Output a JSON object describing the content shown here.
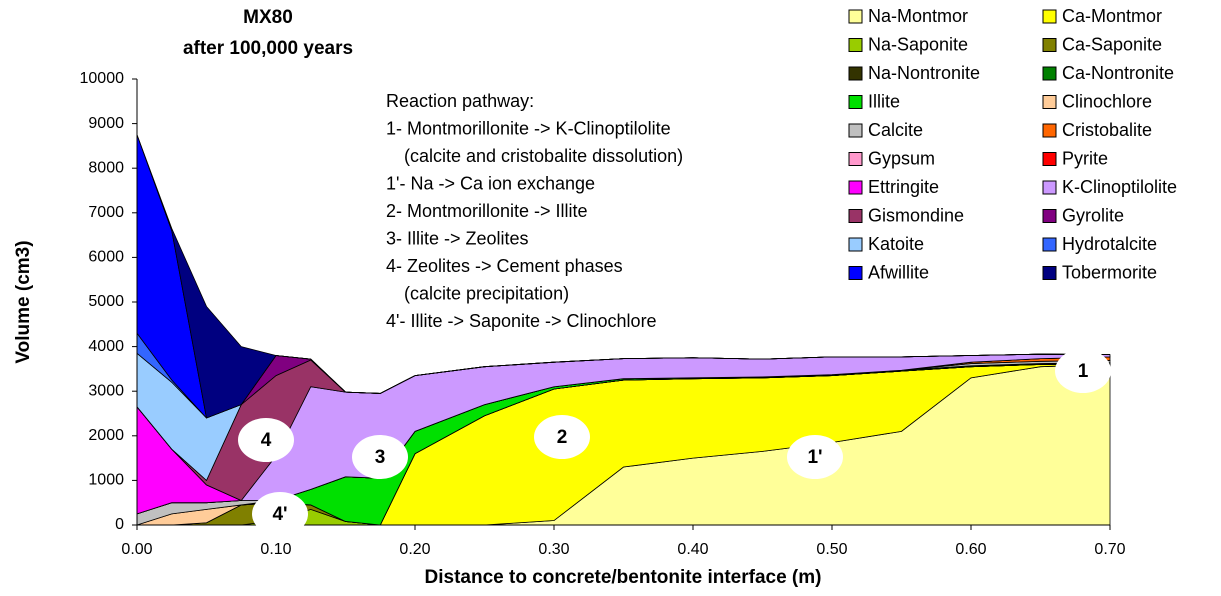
{
  "chart_data": {
    "type": "stacked_area",
    "title": [
      "MX80",
      "after 100,000 years"
    ],
    "x_label": "Distance to concrete/bentonite interface (m)",
    "y_label": "Volume (cm3)",
    "x": [
      0,
      0.025,
      0.05,
      0.075,
      0.1,
      0.125,
      0.15,
      0.175,
      0.2,
      0.25,
      0.3,
      0.35,
      0.4,
      0.45,
      0.5,
      0.55,
      0.6,
      0.65,
      0.7
    ],
    "xlim": [
      0,
      0.7
    ],
    "xticks": [
      {
        "value": 0,
        "label": "0.00"
      },
      {
        "value": 0.1,
        "label": "0.10"
      },
      {
        "value": 0.2,
        "label": "0.20"
      },
      {
        "value": 0.3,
        "label": "0.30"
      },
      {
        "value": 0.4,
        "label": "0.40"
      },
      {
        "value": 0.5,
        "label": "0.50"
      },
      {
        "value": 0.6,
        "label": "0.60"
      },
      {
        "value": 0.7,
        "label": "0.70"
      }
    ],
    "ylim": [
      0,
      10000
    ],
    "yticks": [
      0,
      1000,
      2000,
      3000,
      4000,
      5000,
      6000,
      7000,
      8000,
      9000,
      10000
    ],
    "series": [
      {
        "name": "Na-Montmor",
        "color": "#ffff99",
        "values": [
          0,
          0,
          0,
          0,
          0,
          0,
          0,
          0,
          0,
          0,
          100,
          1300,
          1500,
          1650,
          1850,
          2100,
          3300,
          3550,
          3600
        ]
      },
      {
        "name": "Ca-Montmor",
        "color": "#ffff00",
        "values": [
          0,
          0,
          0,
          0,
          0,
          0,
          0,
          0,
          1600,
          2450,
          2950,
          1950,
          1780,
          1650,
          1500,
          1350,
          250,
          50,
          20
        ]
      },
      {
        "name": "Na-Saponite",
        "color": "#99cc00",
        "values": [
          0,
          0,
          0,
          0,
          100,
          350,
          80,
          0,
          0,
          0,
          0,
          0,
          0,
          0,
          0,
          0,
          0,
          0,
          0
        ]
      },
      {
        "name": "Ca-Saponite",
        "color": "#808000",
        "values": [
          0,
          0,
          50,
          450,
          400,
          100,
          0,
          0,
          0,
          0,
          0,
          0,
          0,
          0,
          0,
          0,
          0,
          0,
          0
        ]
      },
      {
        "name": "Na-Nontronite",
        "color": "#333300",
        "values": [
          0,
          0,
          0,
          0,
          0,
          0,
          0,
          0,
          0,
          0,
          0,
          0,
          0,
          0,
          0,
          0,
          0,
          0,
          0
        ]
      },
      {
        "name": "Ca-Nontronite",
        "color": "#008000",
        "values": [
          0,
          0,
          0,
          0,
          0,
          0,
          0,
          0,
          0,
          0,
          0,
          0,
          0,
          0,
          0,
          0,
          0,
          0,
          0
        ]
      },
      {
        "name": "Illite",
        "color": "#00e000",
        "values": [
          0,
          0,
          0,
          0,
          50,
          350,
          1000,
          1050,
          500,
          250,
          50,
          30,
          20,
          20,
          20,
          20,
          20,
          20,
          20
        ]
      },
      {
        "name": "Clinochlore",
        "color": "#ffcc99",
        "values": [
          0,
          250,
          300,
          0,
          0,
          0,
          0,
          0,
          0,
          0,
          0,
          0,
          0,
          0,
          0,
          0,
          0,
          0,
          0
        ]
      },
      {
        "name": "Calcite",
        "color": "#c0c0c0",
        "values": [
          250,
          250,
          150,
          100,
          0,
          0,
          0,
          0,
          0,
          0,
          0,
          0,
          0,
          0,
          0,
          0,
          50,
          50,
          50
        ]
      },
      {
        "name": "Cristobalite",
        "color": "#ff6600",
        "values": [
          0,
          0,
          0,
          0,
          0,
          0,
          0,
          0,
          0,
          0,
          0,
          0,
          0,
          0,
          0,
          0,
          30,
          60,
          80
        ]
      },
      {
        "name": "Gypsum",
        "color": "#ff99cc",
        "values": [
          0,
          0,
          0,
          0,
          0,
          0,
          0,
          0,
          0,
          0,
          0,
          0,
          0,
          0,
          0,
          0,
          0,
          0,
          0
        ]
      },
      {
        "name": "Pyrite",
        "color": "#ff0000",
        "values": [
          0,
          0,
          0,
          0,
          0,
          0,
          0,
          0,
          0,
          0,
          0,
          0,
          0,
          0,
          0,
          0,
          0,
          0,
          0
        ]
      },
      {
        "name": "Ettringite",
        "color": "#ff00ff",
        "values": [
          2400,
          1200,
          400,
          0,
          0,
          0,
          0,
          0,
          0,
          0,
          0,
          0,
          0,
          0,
          0,
          0,
          0,
          0,
          0
        ]
      },
      {
        "name": "K-Clinoptilolite",
        "color": "#cc99ff",
        "values": [
          0,
          0,
          0,
          0,
          1000,
          2300,
          1900,
          1900,
          1250,
          850,
          550,
          450,
          450,
          400,
          400,
          300,
          150,
          100,
          50
        ]
      },
      {
        "name": "Gismondine",
        "color": "#993366",
        "values": [
          0,
          0,
          100,
          2150,
          1800,
          600,
          0,
          0,
          0,
          0,
          0,
          0,
          0,
          0,
          0,
          0,
          0,
          0,
          0
        ]
      },
      {
        "name": "Gyrolite",
        "color": "#800080",
        "values": [
          0,
          0,
          0,
          0,
          450,
          20,
          0,
          0,
          0,
          0,
          0,
          0,
          0,
          0,
          0,
          0,
          0,
          0,
          0
        ]
      },
      {
        "name": "Katoite",
        "color": "#99ccff",
        "values": [
          1200,
          1500,
          1400,
          0,
          0,
          0,
          0,
          0,
          0,
          0,
          0,
          0,
          0,
          0,
          0,
          0,
          0,
          0,
          0
        ]
      },
      {
        "name": "Hydrotalcite",
        "color": "#3366ff",
        "values": [
          450,
          50,
          0,
          0,
          0,
          0,
          0,
          0,
          0,
          0,
          0,
          0,
          0,
          0,
          0,
          0,
          0,
          0,
          0
        ]
      },
      {
        "name": "Afwillite",
        "color": "#0000ff",
        "values": [
          4450,
          3350,
          0,
          0,
          0,
          0,
          0,
          0,
          0,
          0,
          0,
          0,
          0,
          0,
          0,
          0,
          0,
          0,
          0
        ]
      },
      {
        "name": "Tobermorite",
        "color": "#000080",
        "values": [
          0,
          50,
          2500,
          1300,
          0,
          0,
          0,
          0,
          0,
          0,
          0,
          0,
          0,
          0,
          0,
          0,
          0,
          0,
          0
        ]
      }
    ],
    "pathway": [
      "Reaction pathway:",
      "1- Montmorillonite  -> K-Clinoptilolite",
      "(calcite and cristobalite dissolution)",
      "1'- Na -> Ca ion exchange",
      "2- Montmorillonite   ->  Illite",
      "3- Illite  -> Zeolites",
      "4- Zeolites -> Cement phases",
      "(calcite precipitation)",
      "4'- Illite -> Saponite -> Clinochlore"
    ],
    "markers": [
      "1",
      "1'",
      "2",
      "3",
      "4",
      "4'"
    ]
  }
}
